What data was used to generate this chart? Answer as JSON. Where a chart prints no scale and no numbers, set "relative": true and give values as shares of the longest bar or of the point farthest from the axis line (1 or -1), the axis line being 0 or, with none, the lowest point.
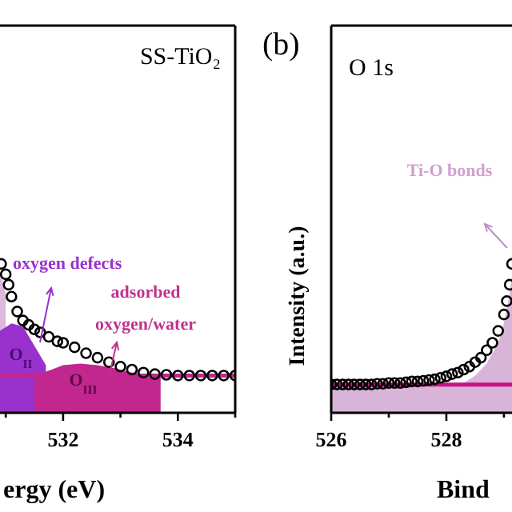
{
  "chart_data": [
    {
      "type": "line",
      "relative": true,
      "xlabel": "ergy (eV)",
      "xlim": [
        530.9,
        535
      ],
      "xticks": [
        {
          "value": 531,
          "label": null
        },
        532,
        {
          "value": 533,
          "label": null
        },
        534,
        {
          "value": 535,
          "label": null
        }
      ],
      "tick_labels": "x",
      "annotations": [
        "SS-TiO₂",
        "oxygen defects",
        "adsorbed\noxygen/water",
        "O$_{II}$",
        "O$_{III}$"
      ],
      "series": [
        {
          "type": "area",
          "color": "#dcb8dc",
          "x": [
            530.9,
            531.0
          ],
          "values": [
            0.95,
            0.8
          ]
        },
        {
          "type": "area",
          "color": "#9932cc",
          "x": [
            530.9,
            531.1,
            531.3,
            531.5,
            531.7
          ],
          "values": [
            0.55,
            0.6,
            0.58,
            0.45,
            0.32
          ]
        },
        {
          "type": "area",
          "color": "#c2268f",
          "x": [
            531.5,
            531.8,
            532.0,
            532.3,
            532.6,
            532.9,
            533.2,
            533.5,
            533.7
          ],
          "values": [
            0.25,
            0.29,
            0.32,
            0.33,
            0.32,
            0.3,
            0.27,
            0.255,
            0.25
          ]
        },
        {
          "type": "line",
          "color": "#c2268f",
          "x": [
            530.9,
            535
          ],
          "values": [
            0.25,
            0.25
          ]
        },
        {
          "type": "scatter",
          "marker": "circle",
          "color": "#000000",
          "x": [
            530.92,
            531.0,
            531.05,
            531.1,
            531.2,
            531.3,
            531.4,
            531.5,
            531.6,
            531.75,
            531.9,
            532.0,
            532.2,
            532.4,
            532.6,
            532.8,
            533.0,
            533.2,
            533.4,
            533.6,
            533.8,
            534.0,
            534.2,
            534.4,
            534.6,
            534.8,
            535.0
          ],
          "values": [
            1,
            0.93,
            0.86,
            0.78,
            0.68,
            0.62,
            0.59,
            0.56,
            0.54,
            0.51,
            0.48,
            0.47,
            0.44,
            0.4,
            0.37,
            0.34,
            0.31,
            0.29,
            0.27,
            0.26,
            0.255,
            0.25,
            0.25,
            0.25,
            0.25,
            0.25,
            0.25
          ]
        }
      ]
    },
    {
      "type": "line",
      "relative": true,
      "xlabel": "Bind",
      "ylabel": "Intensity (a.u.)",
      "xlim": [
        526,
        529.14
      ],
      "xticks": [
        526,
        {
          "value": 527,
          "label": null
        },
        528,
        {
          "value": 529,
          "label": null
        }
      ],
      "tick_labels": "x",
      "annotations": [
        "(b)",
        "O 1s",
        "Ti-O bonds"
      ],
      "series": [
        {
          "type": "area",
          "color": "#d8b4d8",
          "x": [
            526,
            528.3,
            528.5,
            528.7,
            528.9,
            529.0,
            529.1,
            529.14
          ],
          "values": [
            0.19,
            0.2,
            0.25,
            0.33,
            0.47,
            0.6,
            0.8,
            0.92
          ]
        },
        {
          "type": "line",
          "color": "#c71585",
          "x": [
            526,
            529.14
          ],
          "values": [
            0.19,
            0.19
          ]
        },
        {
          "type": "scatter",
          "marker": "circle",
          "color": "#000000",
          "x": [
            526.0,
            526.1,
            526.2,
            526.3,
            526.4,
            526.5,
            526.6,
            526.7,
            526.8,
            526.9,
            527.0,
            527.1,
            527.2,
            527.3,
            527.4,
            527.5,
            527.6,
            527.7,
            527.8,
            527.9,
            528.0,
            528.1,
            528.2,
            528.3,
            528.4,
            528.5,
            528.6,
            528.7,
            528.8,
            528.9,
            529.0,
            529.05,
            529.1,
            529.14
          ],
          "values": [
            0.19,
            0.19,
            0.19,
            0.19,
            0.19,
            0.19,
            0.19,
            0.19,
            0.195,
            0.195,
            0.2,
            0.2,
            0.2,
            0.205,
            0.21,
            0.21,
            0.215,
            0.22,
            0.225,
            0.235,
            0.245,
            0.26,
            0.27,
            0.29,
            0.31,
            0.34,
            0.37,
            0.42,
            0.47,
            0.55,
            0.66,
            0.75,
            0.86,
            1
          ]
        }
      ]
    }
  ]
}
